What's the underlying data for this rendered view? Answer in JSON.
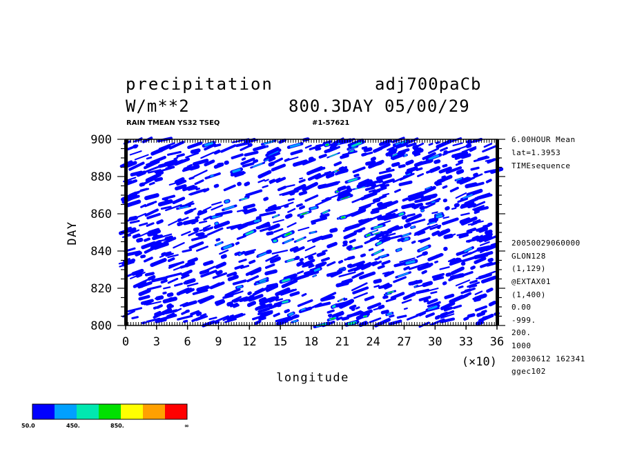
{
  "header": {
    "title_left_1": "precipitation",
    "title_right_1": "adj700paCb",
    "title_left_2": "W/m**2",
    "title_right_2": "800.3DAY 05/00/29",
    "subtitle_left": "RAIN TMEAN YS32 TSEQ",
    "subtitle_right": "#1-57621"
  },
  "info_panel": {
    "top": [
      "6.00HOUR Mean",
      "lat=1.3953",
      "TIMEsequence"
    ],
    "bottom": [
      "20050029060000",
      "GLON128",
      "(1,129)",
      "@EXTAX01",
      "(1,400)",
      "0.00",
      "-999.",
      "200.",
      "1000",
      "20030612 162341",
      "ggec102"
    ]
  },
  "colorbar": {
    "colors": [
      "#0000ff",
      "#00a0ff",
      "#00e8b0",
      "#00e000",
      "#ffff00",
      "#ffa000",
      "#ff0000"
    ],
    "labels": [
      "50.0",
      "450.",
      "850.",
      "∞"
    ]
  },
  "chart_data": {
    "type": "heatmap",
    "title": "precipitation",
    "units": "W/m**2",
    "xlabel": "longitude",
    "ylabel": "DAY",
    "x_multiplier": "(×10)",
    "xlim": [
      0,
      36
    ],
    "ylim": [
      800,
      900
    ],
    "x_ticks": [
      0,
      3,
      6,
      9,
      12,
      15,
      18,
      21,
      24,
      27,
      30,
      33,
      36
    ],
    "y_ticks": [
      800,
      820,
      840,
      860,
      880,
      900
    ],
    "contour_levels": [
      50,
      250,
      450,
      650,
      850,
      1050
    ],
    "grid": false,
    "legend": "bottom-left colorbar"
  }
}
